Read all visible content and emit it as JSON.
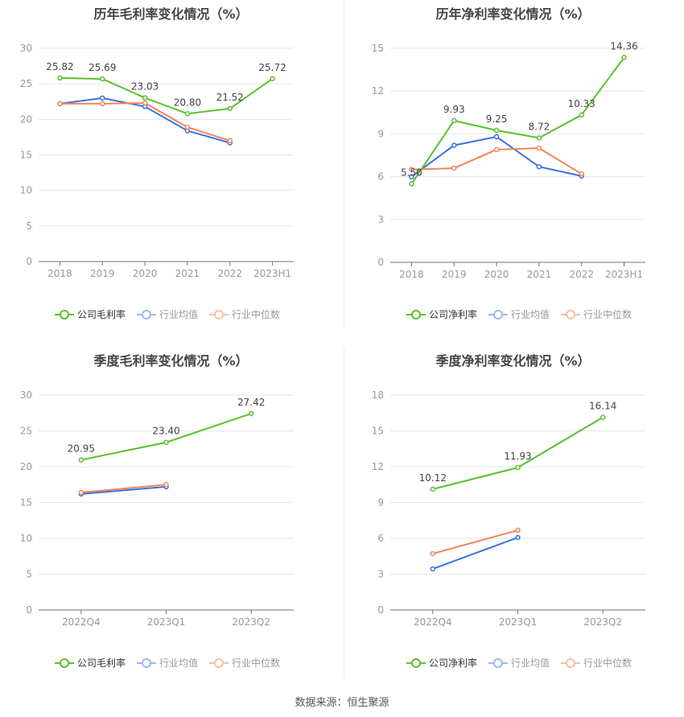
{
  "colors": {
    "company": "#5ac12d",
    "avg": "#3872e0",
    "median": "#f5845a",
    "grid": "#e0e6f1",
    "axis": "#6e7079",
    "tick": "#999999",
    "label": "#444444"
  },
  "legend": {
    "company_gross": "公司毛利率",
    "company_net": "公司净利率",
    "avg": "行业均值",
    "median": "行业中位数"
  },
  "footer": "数据来源：恒生聚源",
  "chart_data": [
    {
      "type": "line",
      "title": "历年毛利率变化情况（%）",
      "categories": [
        "2018",
        "2019",
        "2020",
        "2021",
        "2022",
        "2023H1"
      ],
      "ylim": [
        0,
        30
      ],
      "yticks": [
        0,
        5,
        10,
        15,
        20,
        25,
        30
      ],
      "series": [
        {
          "name": "公司毛利率",
          "values": [
            25.82,
            25.69,
            23.03,
            20.8,
            21.52,
            25.72
          ],
          "labels": true
        },
        {
          "name": "行业均值",
          "values": [
            22.2,
            23.0,
            21.8,
            18.4,
            16.7,
            null
          ]
        },
        {
          "name": "行业中位数",
          "values": [
            22.2,
            22.2,
            22.3,
            18.9,
            17.0,
            null
          ]
        }
      ]
    },
    {
      "type": "line",
      "title": "历年净利率变化情况（%）",
      "categories": [
        "2018",
        "2019",
        "2020",
        "2021",
        "2022",
        "2023H1"
      ],
      "ylim": [
        0,
        15
      ],
      "yticks": [
        0,
        3,
        6,
        9,
        12,
        15
      ],
      "series": [
        {
          "name": "公司净利率",
          "values": [
            5.5,
            9.93,
            9.25,
            8.72,
            10.33,
            14.36
          ],
          "labels": true
        },
        {
          "name": "行业均值",
          "values": [
            6.0,
            8.2,
            8.8,
            6.7,
            6.05,
            null
          ]
        },
        {
          "name": "行业中位数",
          "values": [
            6.5,
            6.6,
            7.9,
            8.0,
            6.2,
            null
          ]
        }
      ]
    },
    {
      "type": "line",
      "title": "季度毛利率变化情况（%）",
      "categories": [
        "2022Q4",
        "2023Q1",
        "2023Q2"
      ],
      "ylim": [
        0,
        30
      ],
      "yticks": [
        0,
        5,
        10,
        15,
        20,
        25,
        30
      ],
      "series": [
        {
          "name": "公司毛利率",
          "values": [
            20.95,
            23.4,
            27.42
          ],
          "labels": true
        },
        {
          "name": "行业均值",
          "values": [
            16.2,
            17.2,
            null
          ]
        },
        {
          "name": "行业中位数",
          "values": [
            16.4,
            17.5,
            null
          ]
        }
      ]
    },
    {
      "type": "line",
      "title": "季度净利率变化情况（%）",
      "categories": [
        "2022Q4",
        "2023Q1",
        "2023Q2"
      ],
      "ylim": [
        0,
        18
      ],
      "yticks": [
        0,
        3,
        6,
        9,
        12,
        15,
        18
      ],
      "series": [
        {
          "name": "公司净利率",
          "values": [
            10.12,
            11.93,
            16.14
          ],
          "labels": true
        },
        {
          "name": "行业均值",
          "values": [
            3.44,
            6.07,
            null
          ]
        },
        {
          "name": "行业中位数",
          "values": [
            4.72,
            6.68,
            null
          ]
        }
      ]
    }
  ]
}
